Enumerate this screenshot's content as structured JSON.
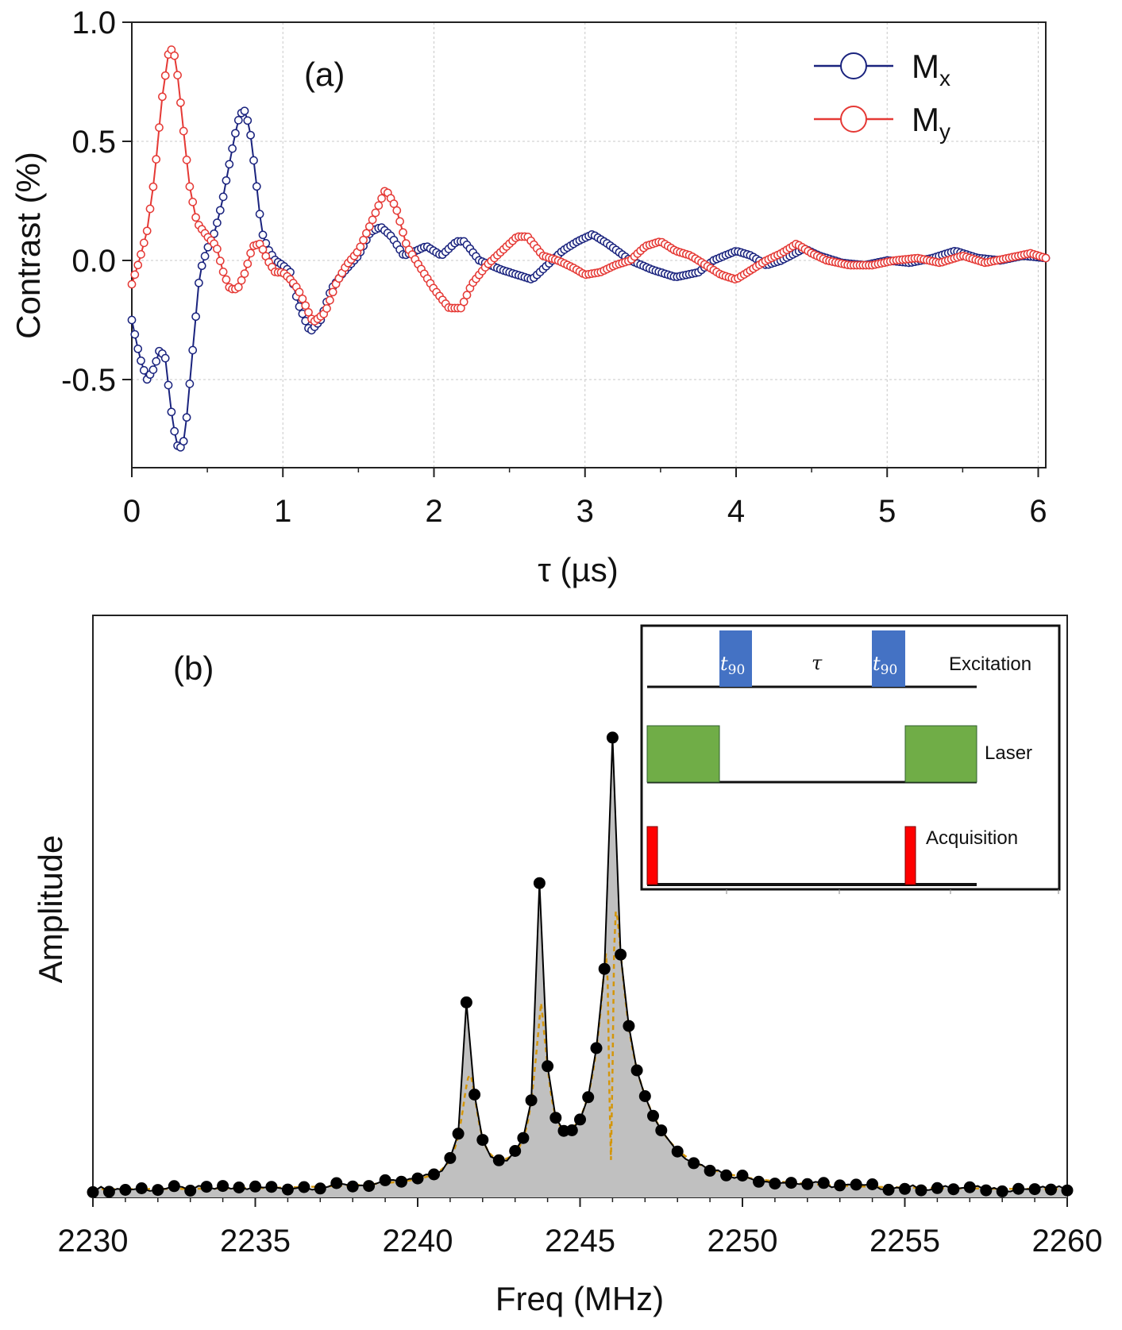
{
  "chart_data": [
    {
      "type": "line",
      "panel_label": "(a)",
      "xlabel": "τ (µs)",
      "ylabel": "Contrast  (%)",
      "xlim": [
        0,
        6.05
      ],
      "ylim": [
        -0.87,
        1.0
      ],
      "x_ticks": [
        "0",
        "1",
        "2",
        "3",
        "4",
        "5",
        "6"
      ],
      "y_ticks": [
        "1.0",
        "0.5",
        "0.0",
        "-0.5"
      ],
      "grid": true,
      "legend_position": "top-right",
      "series": [
        {
          "name": "M",
          "subscript": "x",
          "color": "#1a237e",
          "key_points": [
            [
              0,
              -0.25
            ],
            [
              0.05,
              -0.4
            ],
            [
              0.1,
              -0.5
            ],
            [
              0.15,
              -0.45
            ],
            [
              0.18,
              -0.38
            ],
            [
              0.22,
              -0.4
            ],
            [
              0.27,
              -0.68
            ],
            [
              0.31,
              -0.8
            ],
            [
              0.35,
              -0.75
            ],
            [
              0.4,
              -0.4
            ],
            [
              0.45,
              -0.05
            ],
            [
              0.5,
              0.05
            ],
            [
              0.55,
              0.12
            ],
            [
              0.6,
              0.25
            ],
            [
              0.65,
              0.42
            ],
            [
              0.7,
              0.58
            ],
            [
              0.74,
              0.64
            ],
            [
              0.78,
              0.56
            ],
            [
              0.82,
              0.35
            ],
            [
              0.86,
              0.12
            ],
            [
              0.9,
              0.05
            ],
            [
              0.95,
              0.0
            ],
            [
              1.0,
              -0.02
            ],
            [
              1.05,
              -0.05
            ],
            [
              1.1,
              -0.18
            ],
            [
              1.18,
              -0.3
            ],
            [
              1.25,
              -0.25
            ],
            [
              1.32,
              -0.12
            ],
            [
              1.4,
              -0.05
            ],
            [
              1.5,
              0.02
            ],
            [
              1.58,
              0.12
            ],
            [
              1.65,
              0.14
            ],
            [
              1.72,
              0.1
            ],
            [
              1.8,
              0.02
            ],
            [
              1.88,
              0.04
            ],
            [
              1.95,
              0.06
            ],
            [
              2.05,
              0.02
            ],
            [
              2.15,
              0.08
            ],
            [
              2.2,
              0.08
            ],
            [
              2.3,
              0.0
            ],
            [
              2.45,
              -0.04
            ],
            [
              2.55,
              -0.06
            ],
            [
              2.65,
              -0.08
            ],
            [
              2.75,
              -0.02
            ],
            [
              2.85,
              0.04
            ],
            [
              2.95,
              0.08
            ],
            [
              3.05,
              0.11
            ],
            [
              3.15,
              0.07
            ],
            [
              3.3,
              0.0
            ],
            [
              3.45,
              -0.04
            ],
            [
              3.6,
              -0.07
            ],
            [
              3.75,
              -0.05
            ],
            [
              3.85,
              0.0
            ],
            [
              4.0,
              0.04
            ],
            [
              4.1,
              0.02
            ],
            [
              4.2,
              -0.02
            ],
            [
              4.3,
              0.0
            ],
            [
              4.45,
              0.05
            ],
            [
              4.55,
              0.02
            ],
            [
              4.7,
              -0.01
            ],
            [
              4.85,
              -0.02
            ],
            [
              5.0,
              0.0
            ],
            [
              5.15,
              -0.01
            ],
            [
              5.3,
              0.01
            ],
            [
              5.45,
              0.04
            ],
            [
              5.6,
              0.01
            ],
            [
              5.75,
              0.0
            ],
            [
              5.9,
              0.02
            ],
            [
              6.05,
              0.01
            ]
          ]
        },
        {
          "name": "M",
          "subscript": "y",
          "color": "#e53935",
          "key_points": [
            [
              0,
              -0.1
            ],
            [
              0.05,
              0.0
            ],
            [
              0.1,
              0.12
            ],
            [
              0.15,
              0.35
            ],
            [
              0.2,
              0.68
            ],
            [
              0.25,
              0.9
            ],
            [
              0.29,
              0.85
            ],
            [
              0.33,
              0.62
            ],
            [
              0.38,
              0.32
            ],
            [
              0.43,
              0.16
            ],
            [
              0.5,
              0.1
            ],
            [
              0.56,
              0.06
            ],
            [
              0.6,
              -0.04
            ],
            [
              0.65,
              -0.12
            ],
            [
              0.7,
              -0.12
            ],
            [
              0.75,
              -0.05
            ],
            [
              0.8,
              0.06
            ],
            [
              0.85,
              0.07
            ],
            [
              0.9,
              0.0
            ],
            [
              0.95,
              -0.05
            ],
            [
              1.0,
              -0.05
            ],
            [
              1.05,
              -0.08
            ],
            [
              1.1,
              -0.12
            ],
            [
              1.2,
              -0.26
            ],
            [
              1.28,
              -0.22
            ],
            [
              1.35,
              -0.1
            ],
            [
              1.42,
              -0.02
            ],
            [
              1.5,
              0.04
            ],
            [
              1.6,
              0.18
            ],
            [
              1.68,
              0.3
            ],
            [
              1.75,
              0.22
            ],
            [
              1.82,
              0.06
            ],
            [
              1.9,
              -0.02
            ],
            [
              2.0,
              -0.12
            ],
            [
              2.1,
              -0.2
            ],
            [
              2.18,
              -0.2
            ],
            [
              2.25,
              -0.1
            ],
            [
              2.35,
              -0.02
            ],
            [
              2.45,
              0.04
            ],
            [
              2.55,
              0.1
            ],
            [
              2.62,
              0.1
            ],
            [
              2.72,
              0.02
            ],
            [
              2.82,
              0.0
            ],
            [
              2.92,
              -0.03
            ],
            [
              3.0,
              -0.06
            ],
            [
              3.1,
              -0.05
            ],
            [
              3.2,
              -0.02
            ],
            [
              3.3,
              0.0
            ],
            [
              3.4,
              0.06
            ],
            [
              3.5,
              0.08
            ],
            [
              3.6,
              0.04
            ],
            [
              3.7,
              0.02
            ],
            [
              3.8,
              -0.02
            ],
            [
              3.9,
              -0.06
            ],
            [
              4.0,
              -0.08
            ],
            [
              4.1,
              -0.04
            ],
            [
              4.2,
              0.0
            ],
            [
              4.3,
              0.03
            ],
            [
              4.4,
              0.07
            ],
            [
              4.5,
              0.03
            ],
            [
              4.6,
              0.0
            ],
            [
              4.75,
              -0.02
            ],
            [
              4.9,
              -0.02
            ],
            [
              5.05,
              0.0
            ],
            [
              5.2,
              0.01
            ],
            [
              5.35,
              -0.01
            ],
            [
              5.5,
              0.02
            ],
            [
              5.65,
              -0.01
            ],
            [
              5.8,
              0.01
            ],
            [
              5.95,
              0.03
            ],
            [
              6.05,
              0.01
            ]
          ]
        }
      ]
    },
    {
      "type": "line",
      "panel_label": "(b)",
      "xlabel": "Freq (MHz)",
      "ylabel": "Amplitude",
      "xlim": [
        2230,
        2260
      ],
      "x_ticks": [
        "2230",
        "2235",
        "2240",
        "2245",
        "2250",
        "2255",
        "2260"
      ],
      "ylim": [
        0,
        1.0
      ],
      "fill_color": "#c0c0c0",
      "line_color": "#000000",
      "fit_color": "#d4960a",
      "peaks_mhz": [
        2241.6,
        2243.8,
        2246.0
      ],
      "inset": {
        "rows": [
          {
            "label": "Excitation",
            "pulse_label": "t",
            "pulse_sub": "90",
            "gap_label": "τ",
            "color": "#4472c4"
          },
          {
            "label": "Laser",
            "color": "#70ad47"
          },
          {
            "label": "Acquisition",
            "color": "#ff0000"
          }
        ]
      }
    }
  ]
}
